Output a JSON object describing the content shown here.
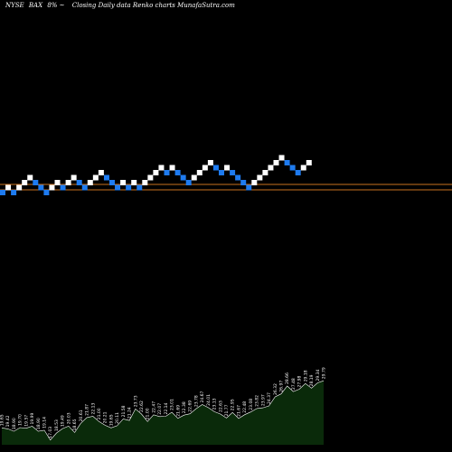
{
  "header": {
    "exchange": "NYSE",
    "symbol": "BAX",
    "change": "8%",
    "separator": "~",
    "caption": "Closing Daily data  Renko  charts MunafaSutra.com"
  },
  "chart_data": {
    "type": "renko",
    "colors": {
      "up_brick": "#ffffff",
      "down_brick": "#1e7bf0",
      "reference_line": "#c8721e",
      "volume_fill": "#0a2a0a",
      "volume_outline": "#ffffff",
      "background": "#000000"
    },
    "bricks": [
      {
        "level": 0,
        "dir": "down"
      },
      {
        "level": 1,
        "dir": "up"
      },
      {
        "level": 0,
        "dir": "down"
      },
      {
        "level": 1,
        "dir": "up"
      },
      {
        "level": 2,
        "dir": "up"
      },
      {
        "level": 3,
        "dir": "up"
      },
      {
        "level": 2,
        "dir": "down"
      },
      {
        "level": 1,
        "dir": "down"
      },
      {
        "level": 0,
        "dir": "down"
      },
      {
        "level": 1,
        "dir": "up"
      },
      {
        "level": 2,
        "dir": "up"
      },
      {
        "level": 1,
        "dir": "down"
      },
      {
        "level": 2,
        "dir": "up"
      },
      {
        "level": 3,
        "dir": "up"
      },
      {
        "level": 2,
        "dir": "down"
      },
      {
        "level": 1,
        "dir": "down"
      },
      {
        "level": 2,
        "dir": "up"
      },
      {
        "level": 3,
        "dir": "up"
      },
      {
        "level": 4,
        "dir": "up"
      },
      {
        "level": 3,
        "dir": "down"
      },
      {
        "level": 2,
        "dir": "down"
      },
      {
        "level": 1,
        "dir": "down"
      },
      {
        "level": 2,
        "dir": "up"
      },
      {
        "level": 1,
        "dir": "down"
      },
      {
        "level": 2,
        "dir": "up"
      },
      {
        "level": 1,
        "dir": "down"
      },
      {
        "level": 2,
        "dir": "up"
      },
      {
        "level": 3,
        "dir": "up"
      },
      {
        "level": 4,
        "dir": "up"
      },
      {
        "level": 5,
        "dir": "up"
      },
      {
        "level": 4,
        "dir": "down"
      },
      {
        "level": 5,
        "dir": "up"
      },
      {
        "level": 4,
        "dir": "down"
      },
      {
        "level": 3,
        "dir": "down"
      },
      {
        "level": 2,
        "dir": "down"
      },
      {
        "level": 3,
        "dir": "up"
      },
      {
        "level": 4,
        "dir": "up"
      },
      {
        "level": 5,
        "dir": "up"
      },
      {
        "level": 6,
        "dir": "up"
      },
      {
        "level": 5,
        "dir": "down"
      },
      {
        "level": 4,
        "dir": "down"
      },
      {
        "level": 5,
        "dir": "up"
      },
      {
        "level": 4,
        "dir": "down"
      },
      {
        "level": 3,
        "dir": "down"
      },
      {
        "level": 2,
        "dir": "down"
      },
      {
        "level": 1,
        "dir": "down"
      },
      {
        "level": 2,
        "dir": "up"
      },
      {
        "level": 3,
        "dir": "up"
      },
      {
        "level": 4,
        "dir": "up"
      },
      {
        "level": 5,
        "dir": "up"
      },
      {
        "level": 6,
        "dir": "up"
      },
      {
        "level": 7,
        "dir": "up"
      },
      {
        "level": 6,
        "dir": "down"
      },
      {
        "level": 5,
        "dir": "down"
      },
      {
        "level": 4,
        "dir": "down"
      },
      {
        "level": 5,
        "dir": "up"
      },
      {
        "level": 6,
        "dir": "up"
      }
    ],
    "volume_labels": [
      "19.65",
      "19.42",
      "18.90",
      "19.70",
      "19.57",
      "19.99",
      "18.90",
      "19.14",
      "17.03",
      "18.53",
      "19.49",
      "20.03",
      "18.65",
      "20.61",
      "21.87",
      "22.13",
      "21.00",
      "20.21",
      "19.65",
      "20.11",
      "21.58",
      "21.24",
      "23.73",
      "22.62",
      "21.00",
      "22.47",
      "22.07",
      "22.14",
      "23.01",
      "21.69",
      "22.38",
      "22.69",
      "23.78",
      "24.67",
      "24.01",
      "23.13",
      "22.63",
      "21.77",
      "22.95",
      "21.67",
      "22.48",
      "23.08",
      "23.82",
      "23.97",
      "24.37",
      "26.32",
      "26.97",
      "28.66",
      "27.48",
      "27.98",
      "29.18",
      "28.19",
      "29.34",
      "29.79"
    ]
  }
}
